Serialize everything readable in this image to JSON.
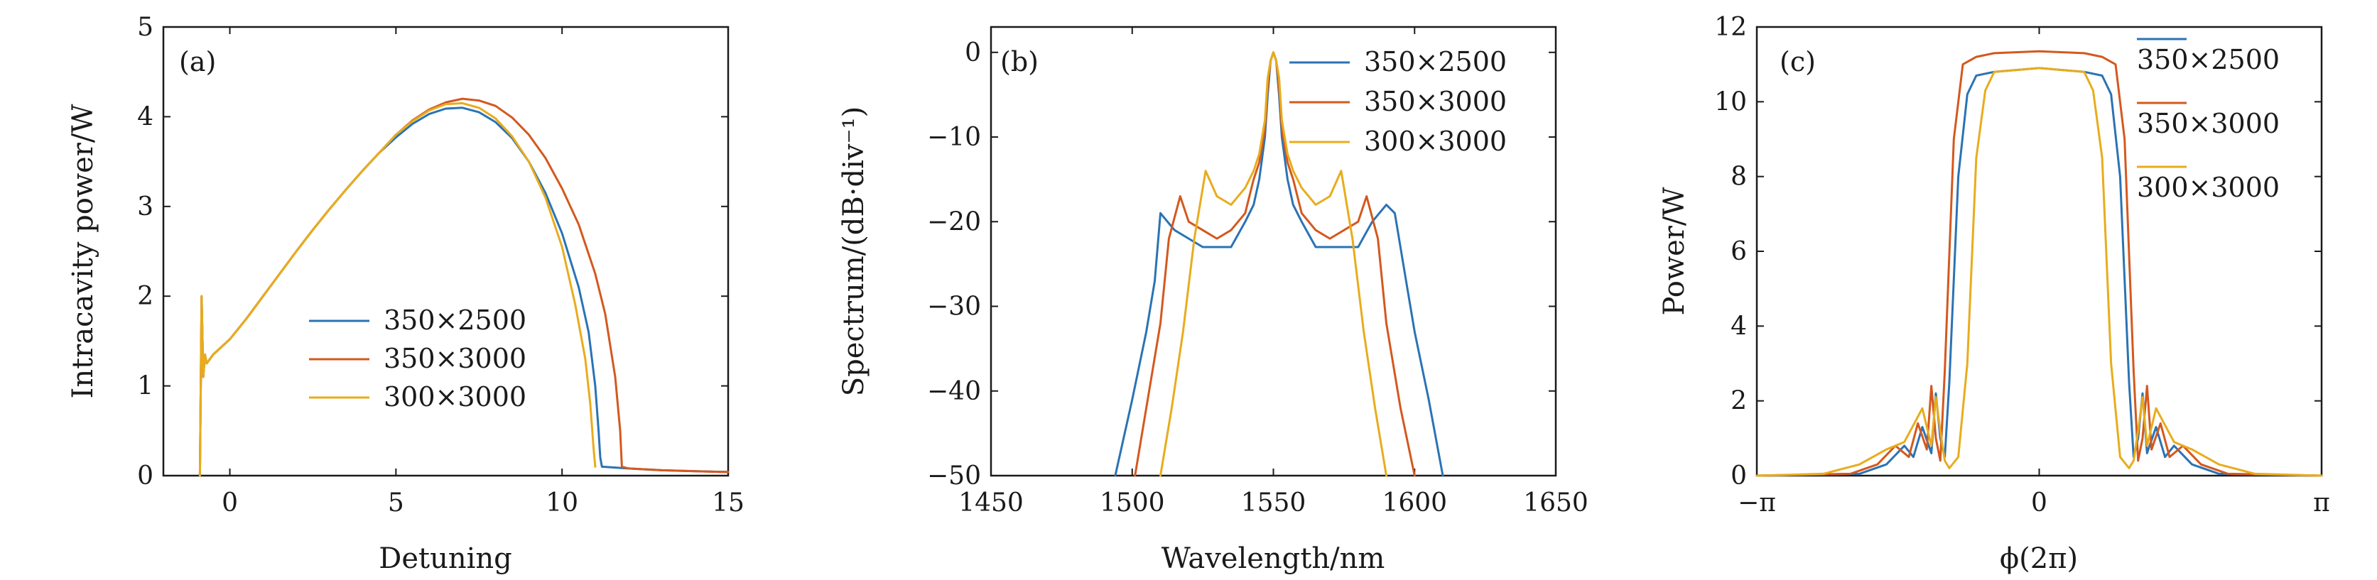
{
  "chart_data": [
    {
      "type": "line",
      "panel_label": "(a)",
      "xlabel": "Detuning",
      "ylabel": "Intracavity power/W",
      "xlim": [
        -2,
        15
      ],
      "ylim": [
        0,
        5
      ],
      "xticks": [
        0,
        5,
        10,
        15
      ],
      "yticks": [
        0,
        1,
        2,
        3,
        4,
        5
      ],
      "xtick_labels": [
        "0",
        "5",
        "10",
        "15"
      ],
      "ytick_labels": [
        "0",
        "1",
        "2",
        "3",
        "4",
        "5"
      ],
      "legend_position": "lower-center",
      "grid": false,
      "series": [
        {
          "name": "350×2500",
          "color": "#2a73b5",
          "x": [
            -0.9,
            -0.85,
            -0.8,
            -0.75,
            -0.7,
            -0.6,
            -0.5,
            0,
            0.5,
            1,
            1.5,
            2,
            2.5,
            3,
            3.5,
            4,
            4.5,
            5,
            5.5,
            6,
            6.5,
            7,
            7.5,
            8,
            8.5,
            9,
            9.5,
            10,
            10.5,
            10.8,
            11.0,
            11.1,
            11.15,
            11.2,
            12,
            13,
            14,
            15
          ],
          "y": [
            0,
            2.0,
            1.1,
            1.35,
            1.25,
            1.3,
            1.35,
            1.52,
            1.75,
            2.0,
            2.25,
            2.5,
            2.74,
            2.97,
            3.19,
            3.4,
            3.6,
            3.77,
            3.92,
            4.03,
            4.09,
            4.1,
            4.05,
            3.94,
            3.76,
            3.5,
            3.15,
            2.7,
            2.1,
            1.6,
            1.0,
            0.5,
            0.2,
            0.1,
            0.08,
            0.06,
            0.05,
            0.04
          ]
        },
        {
          "name": "350×3000",
          "color": "#d4581e",
          "x": [
            -0.9,
            -0.85,
            -0.8,
            -0.75,
            -0.7,
            -0.6,
            -0.5,
            0,
            0.5,
            1,
            1.5,
            2,
            2.5,
            3,
            3.5,
            4,
            4.5,
            5,
            5.5,
            6,
            6.5,
            7,
            7.5,
            8,
            8.5,
            9,
            9.5,
            10,
            10.5,
            11,
            11.3,
            11.6,
            11.75,
            11.8,
            12,
            13,
            14,
            15
          ],
          "y": [
            0,
            2.0,
            1.1,
            1.35,
            1.25,
            1.3,
            1.35,
            1.52,
            1.75,
            2.0,
            2.25,
            2.5,
            2.74,
            2.97,
            3.19,
            3.4,
            3.6,
            3.8,
            3.96,
            4.08,
            4.16,
            4.2,
            4.18,
            4.12,
            3.99,
            3.8,
            3.54,
            3.2,
            2.8,
            2.25,
            1.8,
            1.1,
            0.5,
            0.1,
            0.08,
            0.06,
            0.05,
            0.04
          ]
        },
        {
          "name": "300×3000",
          "color": "#e8ac1c",
          "x": [
            -0.9,
            -0.85,
            -0.8,
            -0.75,
            -0.7,
            -0.6,
            -0.5,
            0,
            0.5,
            1,
            1.5,
            2,
            2.5,
            3,
            3.5,
            4,
            4.5,
            5,
            5.5,
            6,
            6.5,
            7,
            7.5,
            8,
            8.5,
            9,
            9.5,
            10,
            10.4,
            10.7,
            10.85,
            10.95,
            11.0
          ],
          "y": [
            0,
            2.0,
            1.1,
            1.35,
            1.25,
            1.3,
            1.35,
            1.52,
            1.75,
            2.0,
            2.25,
            2.5,
            2.74,
            2.97,
            3.19,
            3.4,
            3.6,
            3.8,
            3.95,
            4.07,
            4.14,
            4.15,
            4.1,
            3.98,
            3.78,
            3.5,
            3.1,
            2.55,
            1.9,
            1.3,
            0.8,
            0.3,
            0.1
          ]
        }
      ]
    },
    {
      "type": "line",
      "panel_label": "(b)",
      "xlabel": "Wavelength/nm",
      "ylabel": "Spectrum/(dB·div⁻¹)",
      "xlim": [
        1450,
        1650
      ],
      "ylim": [
        -50,
        3
      ],
      "xticks": [
        1450,
        1500,
        1550,
        1600,
        1650
      ],
      "yticks": [
        -50,
        -40,
        -30,
        -20,
        -10,
        0
      ],
      "xtick_labels": [
        "1450",
        "1500",
        "1550",
        "1600",
        "1650"
      ],
      "ytick_labels": [
        "−50",
        "−40",
        "−30",
        "−20",
        "−10",
        "0"
      ],
      "legend_position": "top-right",
      "grid": false,
      "series": [
        {
          "name": "350×2500",
          "color": "#2a73b5",
          "x": [
            1494,
            1500,
            1505,
            1508,
            1510,
            1515,
            1520,
            1525,
            1530,
            1535,
            1540,
            1543,
            1545,
            1547,
            1548,
            1549,
            1550,
            1551,
            1552,
            1553,
            1555,
            1557,
            1560,
            1565,
            1570,
            1575,
            1580,
            1585,
            1590,
            1593,
            1597,
            1600,
            1605,
            1610
          ],
          "y": [
            -50,
            -41,
            -33,
            -27,
            -19,
            -21,
            -22,
            -23,
            -23,
            -23,
            -20,
            -18,
            -15,
            -10,
            -5,
            -1,
            0,
            -1,
            -5,
            -10,
            -15,
            -18,
            -20,
            -23,
            -23,
            -23,
            -23,
            -20,
            -18,
            -19,
            -27,
            -33,
            -41,
            -50
          ]
        },
        {
          "name": "350×3000",
          "color": "#d4581e",
          "x": [
            1501,
            1505,
            1510,
            1513,
            1517,
            1520,
            1525,
            1530,
            1535,
            1540,
            1543,
            1545,
            1547,
            1548,
            1549,
            1550,
            1551,
            1552,
            1553,
            1555,
            1557,
            1560,
            1565,
            1570,
            1575,
            1580,
            1583,
            1587,
            1590,
            1595,
            1600
          ],
          "y": [
            -50,
            -42,
            -32,
            -22,
            -17,
            -20,
            -21,
            -22,
            -21,
            -19,
            -15,
            -13,
            -9,
            -4,
            -1,
            0,
            -1,
            -4,
            -9,
            -13,
            -15,
            -19,
            -21,
            -22,
            -21,
            -20,
            -17,
            -22,
            -32,
            -42,
            -50
          ]
        },
        {
          "name": "300×3000",
          "color": "#e8ac1c",
          "x": [
            1510,
            1514,
            1518,
            1522,
            1526,
            1530,
            1535,
            1540,
            1543,
            1545,
            1547,
            1548,
            1549,
            1550,
            1551,
            1552,
            1553,
            1555,
            1557,
            1560,
            1565,
            1570,
            1574,
            1578,
            1582,
            1586,
            1590
          ],
          "y": [
            -50,
            -42,
            -33,
            -22,
            -14,
            -17,
            -18,
            -16,
            -14,
            -12,
            -8,
            -3,
            -1,
            0,
            -1,
            -3,
            -8,
            -12,
            -14,
            -16,
            -18,
            -17,
            -14,
            -22,
            -33,
            -42,
            -50
          ]
        }
      ]
    },
    {
      "type": "line",
      "panel_label": "(c)",
      "xlabel": "ϕ(2π)",
      "ylabel": "Power/W",
      "xlim": [
        -3.14159,
        3.14159
      ],
      "ylim": [
        0,
        12
      ],
      "xticks": [
        -3.14159,
        0,
        3.14159
      ],
      "yticks": [
        0,
        2,
        4,
        6,
        8,
        10,
        12
      ],
      "xtick_labels": [
        "−π",
        "0",
        "π"
      ],
      "ytick_labels": [
        "0",
        "2",
        "4",
        "6",
        "8",
        "10",
        "12"
      ],
      "legend_position": "top-right",
      "grid": false,
      "series": [
        {
          "name": "350×2500",
          "color": "#2a73b5",
          "x": [
            -3.14,
            -2.0,
            -1.7,
            -1.5,
            -1.4,
            -1.3,
            -1.2,
            -1.15,
            -1.1,
            -1.05,
            -1.0,
            -0.9,
            -0.8,
            -0.7,
            -0.5,
            0,
            0.5,
            0.7,
            0.8,
            0.9,
            1.0,
            1.05,
            1.1,
            1.15,
            1.2,
            1.3,
            1.4,
            1.5,
            1.7,
            2.0,
            3.14
          ],
          "y": [
            0,
            0.05,
            0.3,
            0.8,
            0.5,
            1.3,
            0.6,
            2.2,
            1.0,
            0.5,
            2.5,
            8.0,
            10.2,
            10.7,
            10.8,
            10.9,
            10.8,
            10.7,
            10.2,
            8.0,
            2.5,
            0.5,
            1.0,
            2.2,
            0.6,
            1.3,
            0.5,
            0.8,
            0.3,
            0.05,
            0
          ]
        },
        {
          "name": "350×3000",
          "color": "#d4581e",
          "x": [
            -3.14,
            -2.1,
            -1.8,
            -1.6,
            -1.45,
            -1.35,
            -1.25,
            -1.2,
            -1.15,
            -1.1,
            -1.05,
            -0.95,
            -0.85,
            -0.7,
            -0.5,
            0,
            0.5,
            0.7,
            0.85,
            0.95,
            1.05,
            1.1,
            1.15,
            1.2,
            1.25,
            1.35,
            1.45,
            1.6,
            1.8,
            2.1,
            3.14
          ],
          "y": [
            0,
            0.05,
            0.3,
            0.8,
            0.5,
            1.4,
            0.7,
            2.4,
            1.0,
            0.4,
            2.8,
            9.0,
            11.0,
            11.2,
            11.3,
            11.35,
            11.3,
            11.2,
            11.0,
            9.0,
            2.8,
            0.4,
            1.0,
            2.4,
            0.7,
            1.4,
            0.5,
            0.8,
            0.3,
            0.05,
            0
          ]
        },
        {
          "name": "300×3000",
          "color": "#e8ac1c",
          "x": [
            -3.14,
            -2.4,
            -2.0,
            -1.7,
            -1.5,
            -1.3,
            -1.2,
            -1.15,
            -1.1,
            -1.05,
            -1.0,
            -0.9,
            -0.8,
            -0.7,
            -0.6,
            -0.5,
            0,
            0.5,
            0.6,
            0.7,
            0.8,
            0.9,
            1.0,
            1.05,
            1.1,
            1.15,
            1.2,
            1.3,
            1.5,
            1.7,
            2.0,
            2.4,
            3.14
          ],
          "y": [
            0,
            0.05,
            0.3,
            0.7,
            0.9,
            1.8,
            0.8,
            2.1,
            1.2,
            0.4,
            0.2,
            0.5,
            3.0,
            8.5,
            10.3,
            10.8,
            10.9,
            10.8,
            10.3,
            8.5,
            3.0,
            0.5,
            0.2,
            0.4,
            1.2,
            2.1,
            0.8,
            1.8,
            0.9,
            0.7,
            0.3,
            0.05,
            0
          ]
        }
      ]
    }
  ]
}
